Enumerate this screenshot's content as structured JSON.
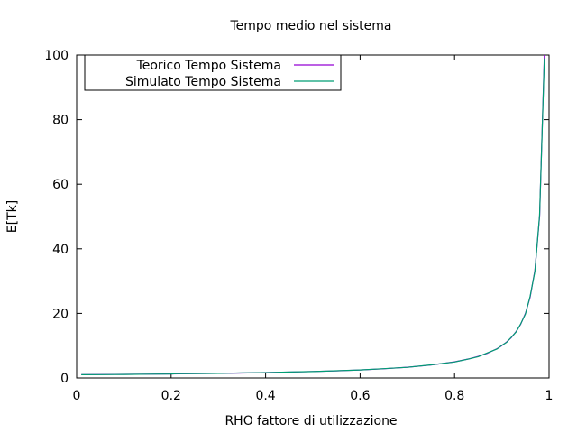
{
  "chart_data": {
    "type": "line",
    "title": "Tempo medio nel sistema",
    "xlabel": "RHO fattore di utilizzazione",
    "ylabel": "E[Tk]",
    "xlim": [
      0,
      1
    ],
    "ylim": [
      0,
      100
    ],
    "xticks": [
      0,
      0.2,
      0.4,
      0.6,
      0.8,
      1
    ],
    "xtick_labels": [
      "0",
      "0.2",
      "0.4",
      "0.6",
      "0.8",
      "1"
    ],
    "yticks": [
      0,
      20,
      40,
      60,
      80,
      100
    ],
    "ytick_labels": [
      "0",
      "20",
      "40",
      "60",
      "80",
      "100"
    ],
    "grid": false,
    "legend_position": "top-left",
    "series": [
      {
        "name": "Teorico Tempo Sistema",
        "color": "#9400d3",
        "x": [
          0.01,
          0.05,
          0.1,
          0.15,
          0.2,
          0.25,
          0.3,
          0.35,
          0.4,
          0.45,
          0.5,
          0.55,
          0.6,
          0.65,
          0.7,
          0.75,
          0.8,
          0.83,
          0.85,
          0.87,
          0.89,
          0.9,
          0.91,
          0.92,
          0.93,
          0.94,
          0.95,
          0.96,
          0.97,
          0.98,
          0.99
        ],
        "values": [
          1.01,
          1.05,
          1.11,
          1.18,
          1.25,
          1.33,
          1.43,
          1.54,
          1.67,
          1.82,
          2.0,
          2.22,
          2.5,
          2.86,
          3.33,
          4.0,
          5.0,
          5.88,
          6.67,
          7.69,
          9.09,
          10.0,
          11.11,
          12.5,
          14.29,
          16.67,
          20.0,
          25.0,
          33.33,
          50.0,
          100.0
        ]
      },
      {
        "name": "Simulato Tempo Sistema",
        "color": "#009e73",
        "x": [
          0.01,
          0.05,
          0.1,
          0.15,
          0.2,
          0.21,
          0.25,
          0.3,
          0.35,
          0.4,
          0.45,
          0.5,
          0.55,
          0.6,
          0.65,
          0.7,
          0.75,
          0.8,
          0.83,
          0.85,
          0.87,
          0.89,
          0.9,
          0.91,
          0.92,
          0.93,
          0.94,
          0.95,
          0.96,
          0.97,
          0.98,
          0.99
        ],
        "values": [
          1.0,
          1.04,
          1.1,
          1.17,
          1.24,
          1.3,
          1.34,
          1.42,
          1.56,
          1.66,
          1.83,
          1.99,
          2.24,
          2.48,
          2.88,
          3.3,
          4.05,
          4.95,
          5.9,
          6.6,
          7.8,
          9.0,
          10.1,
          11.0,
          12.6,
          14.2,
          16.8,
          19.8,
          25.3,
          33.0,
          50.5,
          99.0
        ]
      }
    ]
  }
}
